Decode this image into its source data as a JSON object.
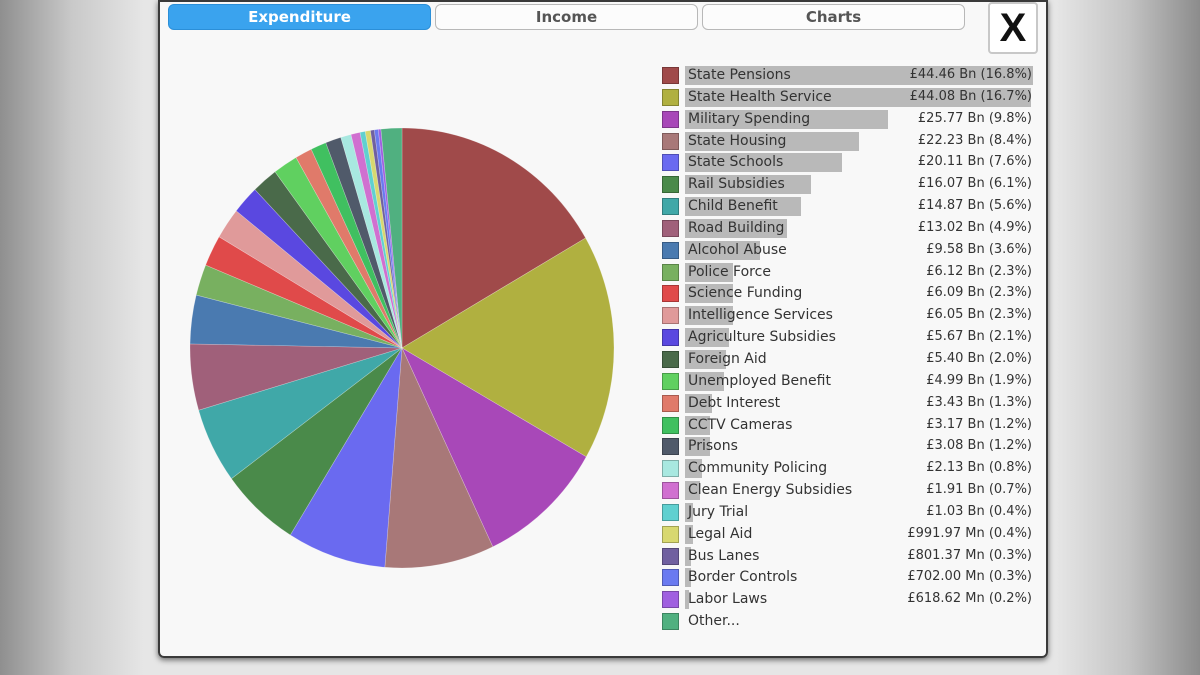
{
  "tabs": [
    {
      "label": "Expenditure",
      "active": true
    },
    {
      "label": "Income",
      "active": false
    },
    {
      "label": "Charts",
      "active": false
    }
  ],
  "close_label": "X",
  "chart_data": {
    "type": "pie",
    "slices": [
      {
        "name": "State Pensions",
        "text": "£44.46 Bn (16.8%)",
        "percent": 16.8,
        "color": "#a04a4a"
      },
      {
        "name": "State Health Service",
        "text": "£44.08 Bn (16.7%)",
        "percent": 16.7,
        "color": "#b0b040"
      },
      {
        "name": "Military Spending",
        "text": "£25.77 Bn (9.8%)",
        "percent": 9.8,
        "color": "#a848b8"
      },
      {
        "name": "State Housing",
        "text": "£22.23 Bn (8.4%)",
        "percent": 8.4,
        "color": "#a87878"
      },
      {
        "name": "State Schools",
        "text": "£20.11 Bn (7.6%)",
        "percent": 7.6,
        "color": "#6a6af0"
      },
      {
        "name": "Rail Subsidies",
        "text": "£16.07 Bn (6.1%)",
        "percent": 6.1,
        "color": "#4a8a4a"
      },
      {
        "name": "Child Benefit",
        "text": "£14.87 Bn (5.6%)",
        "percent": 5.6,
        "color": "#40a8a8"
      },
      {
        "name": "Road Building",
        "text": "£13.02 Bn (4.9%)",
        "percent": 4.9,
        "color": "#a0607a"
      },
      {
        "name": "Alcohol Abuse",
        "text": "£9.58 Bn (3.6%)",
        "percent": 3.6,
        "color": "#4a7ab0"
      },
      {
        "name": "Police Force",
        "text": "£6.12 Bn (2.3%)",
        "percent": 2.3,
        "color": "#78b060"
      },
      {
        "name": "Science Funding",
        "text": "£6.09 Bn (2.3%)",
        "percent": 2.3,
        "color": "#e04a4a"
      },
      {
        "name": "Intelligence Services",
        "text": "£6.05 Bn (2.3%)",
        "percent": 2.3,
        "color": "#e09a9a"
      },
      {
        "name": "Agriculture Subsidies",
        "text": "£5.67 Bn (2.1%)",
        "percent": 2.1,
        "color": "#5a48e0"
      },
      {
        "name": "Foreign Aid",
        "text": "£5.40 Bn (2.0%)",
        "percent": 2.0,
        "color": "#4a6a4a"
      },
      {
        "name": "Unemployed Benefit",
        "text": "£4.99 Bn (1.9%)",
        "percent": 1.9,
        "color": "#60d060"
      },
      {
        "name": "Debt Interest",
        "text": "£3.43 Bn (1.3%)",
        "percent": 1.3,
        "color": "#e07a6a"
      },
      {
        "name": "CCTV Cameras",
        "text": "£3.17 Bn (1.2%)",
        "percent": 1.2,
        "color": "#40c060"
      },
      {
        "name": "Prisons",
        "text": "£3.08 Bn (1.2%)",
        "percent": 1.2,
        "color": "#505a6a"
      },
      {
        "name": "Community Policing",
        "text": "£2.13 Bn (0.8%)",
        "percent": 0.8,
        "color": "#a8e8e0"
      },
      {
        "name": "Clean Energy Subsidies",
        "text": "£1.91 Bn (0.7%)",
        "percent": 0.7,
        "color": "#d070d0"
      },
      {
        "name": "Jury Trial",
        "text": "£1.03 Bn (0.4%)",
        "percent": 0.4,
        "color": "#60d0d0"
      },
      {
        "name": "Legal Aid",
        "text": "£991.97 Mn (0.4%)",
        "percent": 0.4,
        "color": "#d8d870"
      },
      {
        "name": "Bus Lanes",
        "text": "£801.37 Mn (0.3%)",
        "percent": 0.3,
        "color": "#7060a0"
      },
      {
        "name": "Border Controls",
        "text": "£702.00 Mn (0.3%)",
        "percent": 0.3,
        "color": "#6a7af0"
      },
      {
        "name": "Labor Laws",
        "text": "£618.62 Mn (0.2%)",
        "percent": 0.2,
        "color": "#a060e0"
      },
      {
        "name": "Other...",
        "text": "",
        "percent": 1.6,
        "color": "#50b080"
      }
    ]
  }
}
